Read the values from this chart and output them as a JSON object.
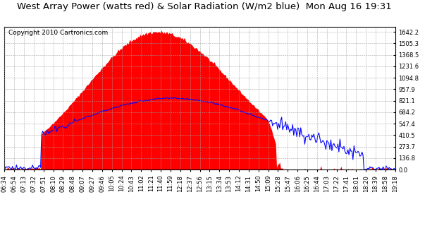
{
  "title": "West Array Power (watts red) & Solar Radiation (W/m2 blue)  Mon Aug 16 19:31",
  "copyright_text": "Copyright 2010 Cartronics.com",
  "yticks": [
    0.0,
    136.8,
    273.7,
    410.5,
    547.4,
    684.2,
    821.1,
    957.9,
    1094.8,
    1231.6,
    1368.5,
    1505.3,
    1642.2
  ],
  "ymax": 1700,
  "ymin": 0,
  "background_color": "#ffffff",
  "plot_bg_color": "#ffffff",
  "grid_color": "#a0a0a0",
  "red_fill_color": "#ff0000",
  "blue_line_color": "#0000ff",
  "title_color": "#000000",
  "border_color": "#000000",
  "title_fontsize": 9.5,
  "copyright_fontsize": 6.5,
  "tick_fontsize": 6.0,
  "num_points": 390,
  "time_labels": [
    "06:34",
    "06:54",
    "07:13",
    "07:32",
    "07:51",
    "08:10",
    "08:29",
    "08:48",
    "09:07",
    "09:27",
    "09:46",
    "10:05",
    "10:24",
    "10:43",
    "11:02",
    "11:21",
    "11:40",
    "11:59",
    "12:18",
    "12:37",
    "12:56",
    "13:15",
    "13:34",
    "13:53",
    "14:12",
    "14:31",
    "14:50",
    "15:09",
    "15:28",
    "15:47",
    "16:06",
    "16:25",
    "16:44",
    "17:03",
    "17:22",
    "17:41",
    "18:01",
    "18:20",
    "18:39",
    "18:58",
    "19:18"
  ]
}
